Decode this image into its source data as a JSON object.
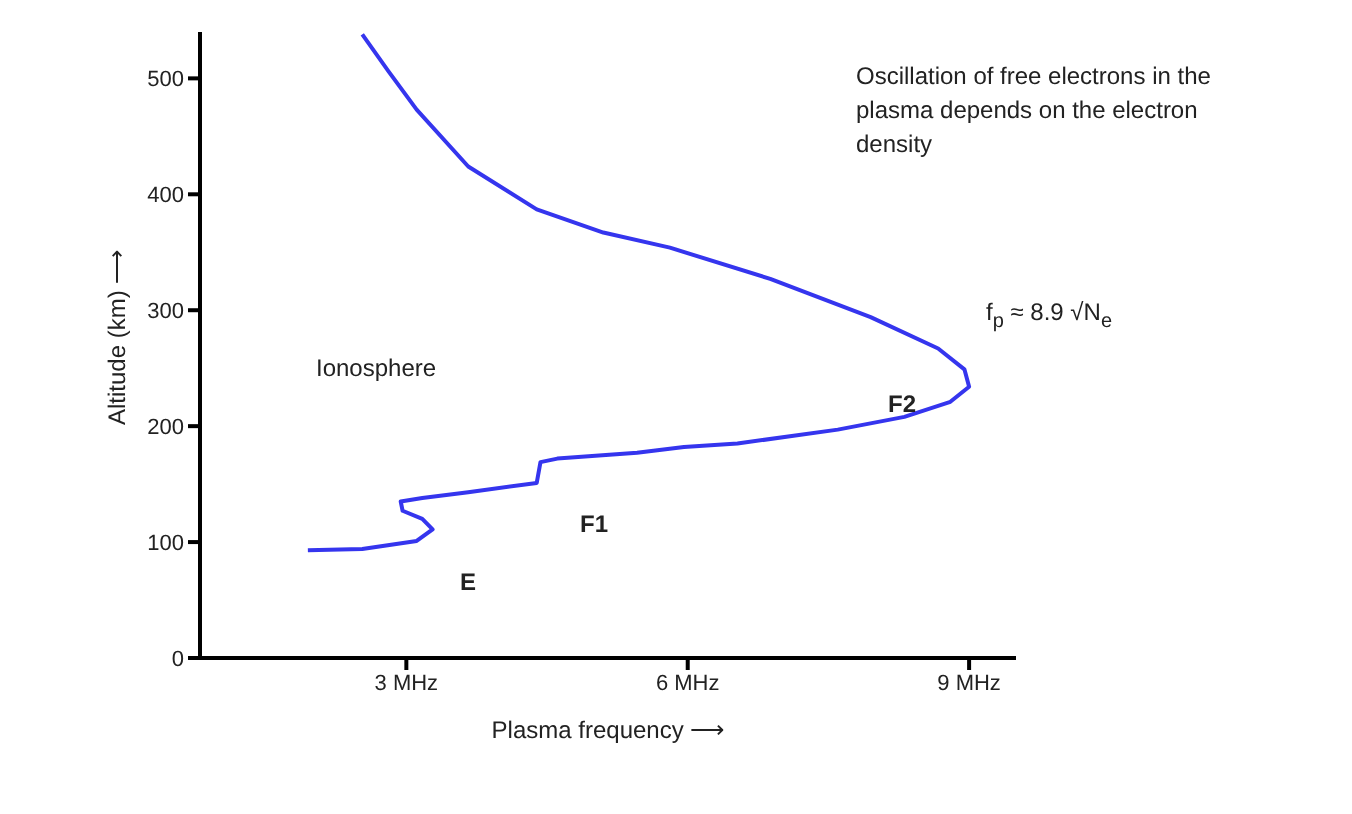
{
  "chart_data": {
    "type": "line",
    "xlabel": "Plasma frequency ⟶",
    "ylabel": "Altitude (km) ⟶",
    "xlim": [
      0.8,
      9.5
    ],
    "xticks": [
      {
        "value": 3,
        "label": "3 MHz"
      },
      {
        "value": 6,
        "label": "6 MHz"
      },
      {
        "value": 9,
        "label": "9 MHz"
      }
    ],
    "ylim": [
      0,
      540
    ],
    "yticks": [
      0,
      100,
      200,
      300,
      400,
      500
    ],
    "grid": false,
    "marker": "none",
    "line_style": "solid",
    "x": [
      1.95,
      2.53,
      3.11,
      3.28,
      3.17,
      2.96,
      2.94,
      3.17,
      3.66,
      4.39,
      4.43,
      4.61,
      5.46,
      5.96,
      6.53,
      7.6,
      8.31,
      8.8,
      9.0,
      8.95,
      8.67,
      7.95,
      6.88,
      5.81,
      5.1,
      4.39,
      3.66,
      3.11,
      2.81,
      2.53
    ],
    "series": [
      {
        "color": "#3535ee",
        "values": [
          93,
          94,
          101,
          111,
          120,
          127,
          135,
          138,
          143,
          151,
          169,
          172,
          177,
          182,
          185,
          197,
          208,
          221,
          234,
          249,
          267,
          294,
          327,
          354,
          367,
          387,
          424,
          473,
          506,
          538
        ]
      }
    ],
    "annotations": [
      "E",
      "F1",
      "F2",
      "Ionosphere",
      "Oscillation of free electrons in the plasma depends on the electron density",
      "f$_{p}$ ≈ 8.9 √N$_{e}$"
    ]
  }
}
